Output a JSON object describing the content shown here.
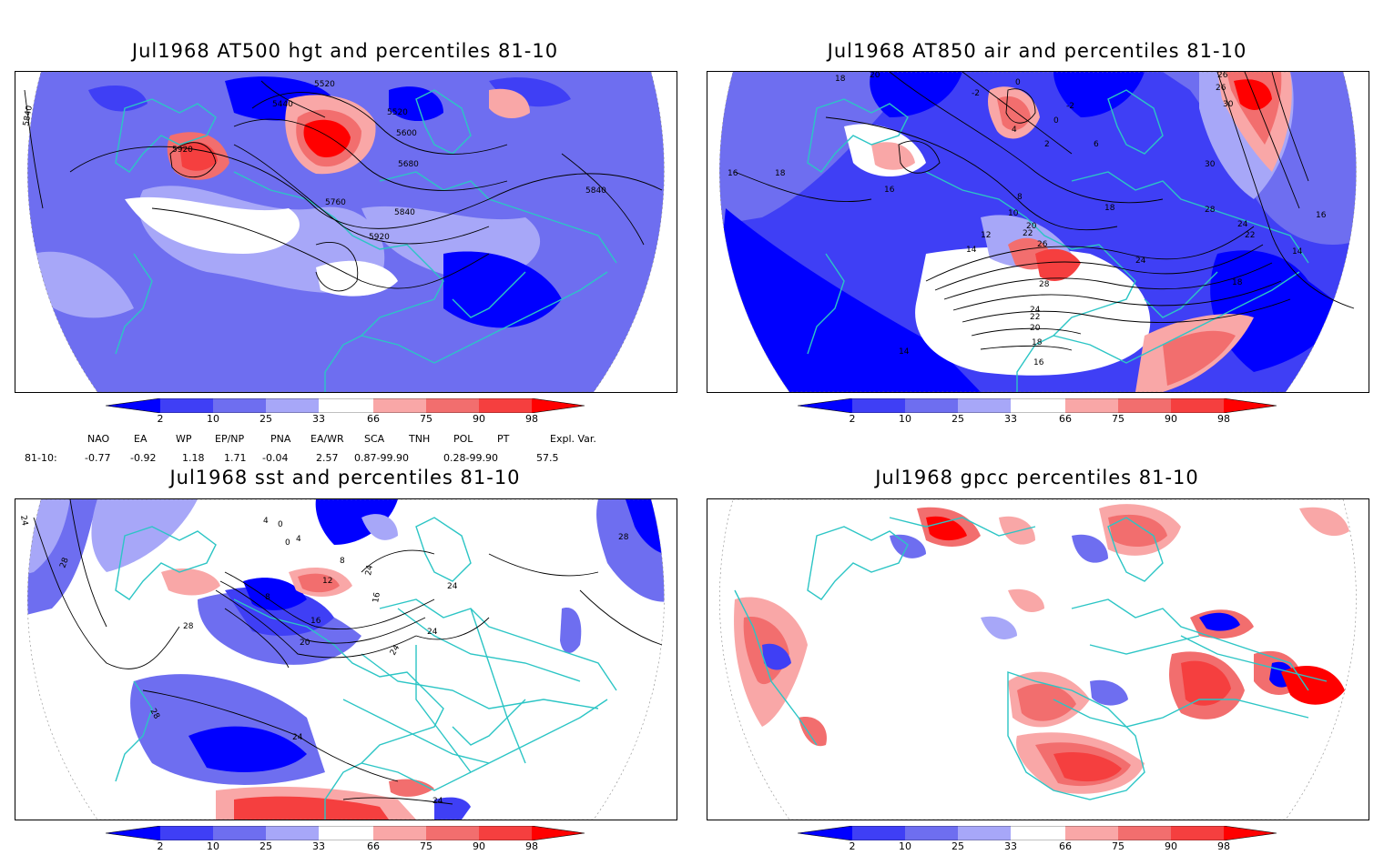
{
  "panels": [
    {
      "id": "p1",
      "title": "Jul1968 AT500 hgt and percentiles 81-10"
    },
    {
      "id": "p2",
      "title": "Jul1968 AT850 air and percentiles 81-10"
    },
    {
      "id": "p3",
      "title": "Jul1968 sst and percentiles 81-10"
    },
    {
      "id": "p4",
      "title": "Jul1968 gpcc percentiles 81-10"
    }
  ],
  "colorbar": {
    "labels": [
      "2",
      "10",
      "25",
      "33",
      "66",
      "75",
      "90",
      "98"
    ],
    "colors": [
      "#0000ff",
      "#3f3ff5",
      "#6e6ef0",
      "#a7a7f8",
      "#ffffff",
      "#f9a7a7",
      "#f26e6e",
      "#f53f3f",
      "#ff0000"
    ]
  },
  "contour_labels": {
    "p1": [
      "5840",
      "5520",
      "5440",
      "5520",
      "5920",
      "5600",
      "5680",
      "5760",
      "5840",
      "5920",
      "5840"
    ],
    "p2": [
      "18",
      "20",
      "-2",
      "0",
      "-2",
      "0",
      "26",
      "26",
      "30",
      "4",
      "2",
      "6",
      "16",
      "18",
      "30",
      "8",
      "10",
      "16",
      "18",
      "28",
      "12",
      "20",
      "22",
      "26",
      "14",
      "24",
      "22",
      "28",
      "24",
      "22",
      "20",
      "18",
      "16",
      "14",
      "18",
      "14",
      "24",
      "16"
    ],
    "p3": [
      "24",
      "4",
      "0",
      "4",
      "0",
      "8",
      "28",
      "12",
      "28",
      "8",
      "16",
      "24",
      "16",
      "28",
      "24",
      "24",
      "20",
      "24",
      "28",
      "24",
      "24"
    ]
  },
  "indices": {
    "headers": [
      "NAO",
      "EA",
      "WP",
      "EP/NP",
      "PNA",
      "EA/WR",
      "SCA",
      "TNH",
      "POL",
      "PT",
      "Expl. Var."
    ],
    "row_label": "81-10:",
    "values": [
      "-0.77",
      "-0.92",
      "1.18",
      "1.71",
      "-0.04",
      "2.57",
      "0.87-99.90",
      "0.28-99.90",
      "57.5"
    ]
  },
  "style": {
    "land_outline": "#2cc5c5",
    "contour": "#000000"
  }
}
